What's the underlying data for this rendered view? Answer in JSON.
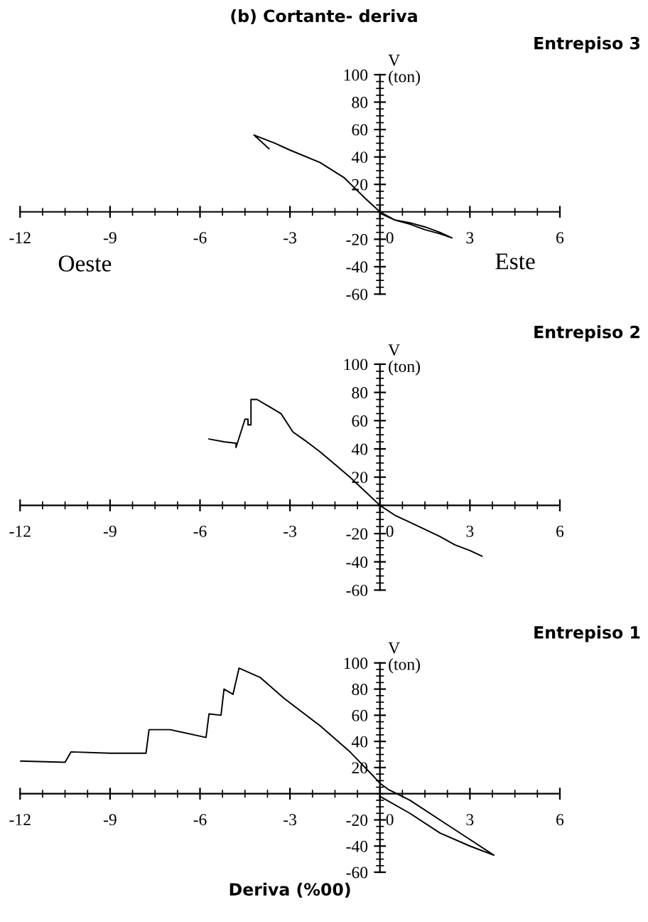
{
  "chart_data": [
    {
      "type": "line",
      "title": "(b) Cortante- deriva",
      "subtitle": "Entrepiso 3",
      "ylabel": "V\n(ton)",
      "annotations": [
        "Oeste",
        "Este"
      ],
      "series": [
        {
          "color": "#000000",
          "x": [
            -3.7,
            -4.2,
            -3.5,
            -3,
            -2,
            -1.2,
            -0.5,
            0,
            0.5,
            1,
            1.5,
            2,
            2.4,
            2,
            1.5,
            1,
            0.5,
            0
          ],
          "values": [
            46,
            56,
            50,
            45,
            36,
            25,
            10,
            0,
            -6,
            -8,
            -11,
            -15,
            -19,
            -16,
            -13,
            -9,
            -6,
            -1
          ]
        }
      ],
      "xlim": [
        -12,
        6
      ],
      "ylim": [
        -60,
        100
      ],
      "xticks": [
        -12,
        -9,
        -6,
        -3,
        0,
        3,
        6
      ],
      "yticks": [
        -60,
        -40,
        -20,
        20,
        40,
        60,
        80,
        100
      ],
      "grid": false,
      "marker": "none",
      "line_style": "solid"
    },
    {
      "type": "line",
      "subtitle": "Entrepiso 2",
      "ylabel": "V\n(ton)",
      "series": [
        {
          "color": "#000000",
          "x": [
            -5.7,
            -5.2,
            -4.8,
            -4.8,
            -4.5,
            -4.4,
            -4.4,
            -4.3,
            -4.3,
            -4.1,
            -3.7,
            -3.3,
            -2.9,
            -2.5,
            -2,
            -1.5,
            -1,
            -0.5,
            0,
            0.5,
            1,
            1.5,
            2,
            2.5,
            3,
            3.4
          ],
          "values": [
            47,
            45,
            44,
            41,
            61,
            61,
            57,
            57,
            75,
            75,
            70,
            65,
            52,
            46,
            38,
            29,
            20,
            10,
            0,
            -7,
            -12,
            -17,
            -22,
            -28,
            -32,
            -36
          ]
        }
      ],
      "xlim": [
        -12,
        6
      ],
      "ylim": [
        -60,
        100
      ],
      "xticks": [
        -12,
        -9,
        -6,
        -3,
        0,
        3,
        6
      ],
      "yticks": [
        -60,
        -40,
        -20,
        20,
        40,
        60,
        80,
        100
      ],
      "grid": false,
      "marker": "none",
      "line_style": "solid"
    },
    {
      "type": "line",
      "subtitle": "Entrepiso 1",
      "ylabel": "V\n(ton)",
      "xlabel": "Deriva (%00)",
      "series": [
        {
          "color": "#000000",
          "x": [
            -12,
            -10.5,
            -10.3,
            -9,
            -7.8,
            -7.7,
            -7,
            -5.8,
            -5.7,
            -5.3,
            -5.2,
            -4.9,
            -4.7,
            -4,
            -3.2,
            -2,
            -1,
            -0.2,
            0,
            0.3,
            1,
            2,
            3,
            3.8,
            3,
            2,
            1,
            0
          ],
          "values": [
            25,
            24,
            32,
            31,
            31,
            49,
            49,
            43,
            61,
            60,
            80,
            76,
            96,
            89,
            73,
            52,
            32,
            13,
            8,
            3,
            -5,
            -20,
            -35,
            -47,
            -40,
            -30,
            -15,
            -2
          ]
        }
      ],
      "xlim": [
        -12,
        6
      ],
      "ylim": [
        -60,
        100
      ],
      "xticks": [
        -12,
        -9,
        -6,
        -3,
        0,
        3,
        6
      ],
      "yticks": [
        -60,
        -40,
        -20,
        20,
        40,
        60,
        80,
        100
      ],
      "grid": false,
      "marker": "none",
      "line_style": "solid"
    }
  ]
}
